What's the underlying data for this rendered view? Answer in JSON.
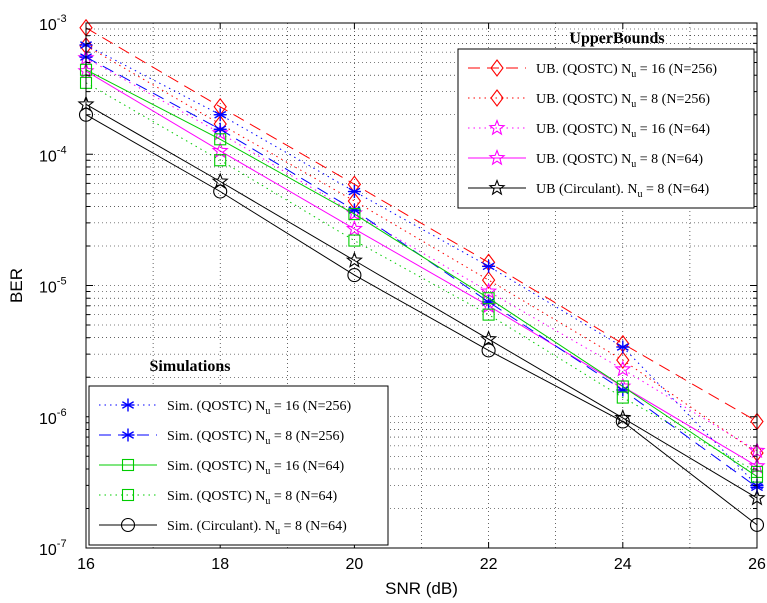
{
  "chart_data": {
    "type": "line",
    "xlabel": "SNR (dB)",
    "ylabel": "BER",
    "x": [
      16,
      18,
      20,
      22,
      24,
      26
    ],
    "xlim": [
      16,
      26
    ],
    "ylim": [
      1e-07,
      0.001
    ],
    "yscale": "log",
    "grid": true,
    "x_tick_labels": [
      "16",
      "18",
      "20",
      "22",
      "24",
      "26"
    ],
    "y_tick_labels": [
      {
        "base": "10",
        "exp": "-7",
        "value": 1e-07
      },
      {
        "base": "10",
        "exp": "-6",
        "value": 1e-06
      },
      {
        "base": "10",
        "exp": "-5",
        "value": 1e-05
      },
      {
        "base": "10",
        "exp": "-4",
        "value": 0.0001
      },
      {
        "base": "10",
        "exp": "-3",
        "value": 0.001
      }
    ],
    "legends": [
      {
        "title": "UpperBounds",
        "placement": "top-right",
        "entries": [
          {
            "name": "UB. (QOSTC) N",
            "sub": "u",
            "rest": " = 16 (N=256)",
            "series": 0
          },
          {
            "name": "UB. (QOSTC) N",
            "sub": "u",
            "rest": " = 8 (N=256)",
            "series": 1
          },
          {
            "name": "UB. (QOSTC) N",
            "sub": "u",
            "rest": " = 16 (N=64)",
            "series": 2
          },
          {
            "name": "UB. (QOSTC) N",
            "sub": "u",
            "rest": " = 8 (N=64)",
            "series": 3
          },
          {
            "name": "UB (Circulant). N",
            "sub": "u",
            "rest": " = 8 (N=64)",
            "series": 4
          }
        ]
      },
      {
        "title": "Simulations",
        "placement": "bottom-left",
        "entries": [
          {
            "name": "Sim. (QOSTC) N",
            "sub": "u",
            "rest": " = 16 (N=256)",
            "series": 5
          },
          {
            "name": "Sim. (QOSTC) N",
            "sub": "u",
            "rest": " = 8 (N=256)",
            "series": 6
          },
          {
            "name": "Sim. (QOSTC) N",
            "sub": "u",
            "rest": " = 16 (N=64)",
            "series": 7
          },
          {
            "name": "Sim. (QOSTC) N",
            "sub": "u",
            "rest": " = 8 (N=64)",
            "series": 8
          },
          {
            "name": "Sim. (Circulant). N",
            "sub": "u",
            "rest": " = 8 (N=64)",
            "series": 9
          }
        ]
      }
    ],
    "series": [
      {
        "name": "UB. (QOSTC) Nu = 16 (N=256)",
        "color": "#ff0000",
        "line": "dashed",
        "marker": "diamond",
        "values": [
          0.00092,
          0.00023,
          5.9e-05,
          1.5e-05,
          3.6e-06,
          9.2e-07
        ]
      },
      {
        "name": "UB. (QOSTC) Nu = 8 (N=256)",
        "color": "#ff0000",
        "line": "dotted",
        "marker": "diamond",
        "values": [
          0.00067,
          0.00017,
          4.4e-05,
          1.1e-05,
          2.7e-06,
          5.3e-07
        ]
      },
      {
        "name": "UB. (QOSTC) Nu = 16 (N=64)",
        "color": "#ff00ff",
        "line": "dotted",
        "marker": "star",
        "values": [
          0.00054,
          0.000145,
          3.55e-05,
          9e-06,
          2.3e-06,
          5.5e-07
        ]
      },
      {
        "name": "UB. (QOSTC) Nu = 8 (N=64)",
        "color": "#ff00ff",
        "line": "solid",
        "marker": "star",
        "values": [
          0.00043,
          0.000106,
          2.7e-05,
          7e-06,
          1.7e-06,
          4.2e-07
        ]
      },
      {
        "name": "UB (Circulant). Nu = 8 (N=64)",
        "color": "#000000",
        "line": "solid",
        "marker": "star",
        "values": [
          0.00024,
          6.2e-05,
          1.55e-05,
          3.9e-06,
          9.8e-07,
          2.4e-07
        ]
      },
      {
        "name": "Sim. (QOSTC) Nu = 16 (N=256)",
        "color": "#0000ff",
        "line": "dotted",
        "marker": "asterisk",
        "values": [
          0.00068,
          0.0002,
          5.2e-05,
          1.4e-05,
          3.4e-06,
          3e-07
        ]
      },
      {
        "name": "Sim. (QOSTC) Nu = 8 (N=256)",
        "color": "#0000ff",
        "line": "dashed",
        "marker": "asterisk",
        "values": [
          0.00055,
          0.000155,
          3.75e-05,
          7.5e-06,
          1.6e-06,
          2.9e-07
        ]
      },
      {
        "name": "Sim. (QOSTC) Nu = 16 (N=64)",
        "color": "#00cc00",
        "line": "solid",
        "marker": "square",
        "values": [
          0.00044,
          0.00013,
          3.5e-05,
          8e-06,
          1.7e-06,
          3.5e-07
        ]
      },
      {
        "name": "Sim. (QOSTC) Nu = 8 (N=64)",
        "color": "#00cc00",
        "line": "dotted",
        "marker": "square",
        "values": [
          0.00035,
          9e-05,
          2.2e-05,
          6e-06,
          1.4e-06,
          3.8e-07
        ]
      },
      {
        "name": "Sim. (Circulant). Nu = 8 (N=64)",
        "color": "#000000",
        "line": "solid",
        "marker": "circle",
        "values": [
          0.0002,
          5.2e-05,
          1.2e-05,
          3.2e-06,
          9.2e-07,
          1.5e-07
        ]
      }
    ]
  }
}
